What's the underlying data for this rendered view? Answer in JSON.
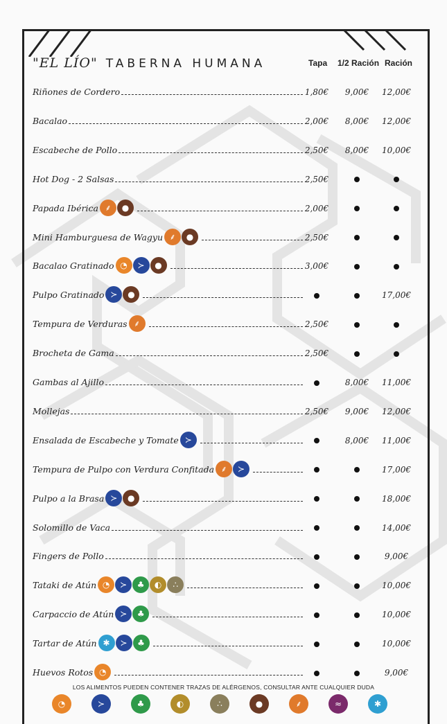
{
  "header": {
    "brand_quote": "\"EL LÍO\"",
    "brand_name": "TABERNA HUMANA",
    "col_tapa": "Tapa",
    "col_media": "1/2 Ración",
    "col_racion": "Ración"
  },
  "items": [
    {
      "name": "Riñones de Cordero",
      "tapa": "1,80€",
      "media": "9,00€",
      "racion": "12,00€",
      "allergens": []
    },
    {
      "name": "Bacalao",
      "tapa": "2,00€",
      "media": "8,00€",
      "racion": "12,00€",
      "allergens": []
    },
    {
      "name": "Escabeche de Pollo",
      "tapa": "2,50€",
      "media": "8,00€",
      "racion": "10,00€",
      "allergens": []
    },
    {
      "name": "Hot Dog - 2 Salsas",
      "tapa": "2,50€",
      "media": "•",
      "racion": "•",
      "allergens": []
    },
    {
      "name": "Papada Ibérica",
      "tapa": "2,00€",
      "media": "•",
      "racion": "•",
      "allergens": [
        "gluten",
        "mollusc"
      ]
    },
    {
      "name": "Mini Hamburguesa de Wagyu",
      "tapa": "2,50€",
      "media": "•",
      "racion": "•",
      "allergens": [
        "gluten",
        "mollusc"
      ]
    },
    {
      "name": "Bacalao Gratinado",
      "tapa": "3,00€",
      "media": "•",
      "racion": "•",
      "allergens": [
        "egg",
        "fish",
        "mollusc"
      ]
    },
    {
      "name": "Pulpo Gratinado",
      "tapa": "•",
      "media": "•",
      "racion": "17,00€",
      "allergens": [
        "fish",
        "mollusc"
      ]
    },
    {
      "name": "Tempura de Verduras",
      "tapa": "2,50€",
      "media": "•",
      "racion": "•",
      "allergens": [
        "gluten"
      ]
    },
    {
      "name": "Brocheta de Gama",
      "tapa": "2,50€",
      "media": "•",
      "racion": "•",
      "allergens": []
    },
    {
      "name": "Gambas al Ajillo",
      "tapa": "•",
      "media": "8,00€",
      "racion": "11,00€",
      "allergens": []
    },
    {
      "name": "Mollejas",
      "tapa": "2,50€",
      "media": "9,00€",
      "racion": "12,00€",
      "allergens": []
    },
    {
      "name": "Ensalada de Escabeche y Tomate",
      "tapa": "•",
      "media": "8,00€",
      "racion": "11,00€",
      "allergens": [
        "fish"
      ]
    },
    {
      "name": "Tempura de Pulpo con Verdura Confitada",
      "tapa": "•",
      "media": "•",
      "racion": "17,00€",
      "allergens": [
        "gluten",
        "fish"
      ]
    },
    {
      "name": "Pulpo a la Brasa",
      "tapa": "•",
      "media": "•",
      "racion": "18,00€",
      "allergens": [
        "fish",
        "mollusc"
      ]
    },
    {
      "name": "Solomillo de Vaca",
      "tapa": "•",
      "media": "•",
      "racion": "14,00€",
      "allergens": []
    },
    {
      "name": "Fingers de Pollo",
      "tapa": "•",
      "media": "•",
      "racion": "9,00€",
      "allergens": []
    },
    {
      "name": "Tataki de Atún",
      "tapa": "•",
      "media": "•",
      "racion": "10,00€",
      "allergens": [
        "egg",
        "fish",
        "celery",
        "mustard",
        "sesame"
      ]
    },
    {
      "name": "Carpaccio de Atún",
      "tapa": "•",
      "media": "•",
      "racion": "10,00€",
      "allergens": [
        "fish",
        "celery"
      ]
    },
    {
      "name": "Tartar de Atún",
      "tapa": "•",
      "media": "•",
      "racion": "10,00€",
      "allergens": [
        "crust",
        "fish",
        "celery"
      ]
    },
    {
      "name": "Huevos Rotos",
      "tapa": "•",
      "media": "•",
      "racion": "9,00€",
      "allergens": [
        "egg"
      ]
    }
  ],
  "footer_note": "LOS ALIMENTOS PUEDEN CONTENER TRAZAS DE ALÉRGENOS, CONSULTAR ANTE CUALQUIER DUDA",
  "legend": [
    "egg",
    "fish",
    "celery",
    "mustard",
    "sesame",
    "mollusc",
    "gluten",
    "sulph",
    "crust"
  ],
  "allergen_icons": {
    "gluten": "wheat-icon",
    "fish": "fish-icon",
    "mollusc": "amphora-icon",
    "egg": "egg-icon",
    "celery": "celery-icon",
    "mustard": "mustard-icon",
    "sesame": "sesame-icon",
    "crust": "crab-icon",
    "sulph": "sulphite-icon"
  },
  "colors": {
    "frame": "#222222",
    "gluten": "#e07a2c",
    "fish": "#27489b",
    "mollusc": "#6b3a24",
    "egg": "#e9862a",
    "celery": "#2f9a4a"
  }
}
